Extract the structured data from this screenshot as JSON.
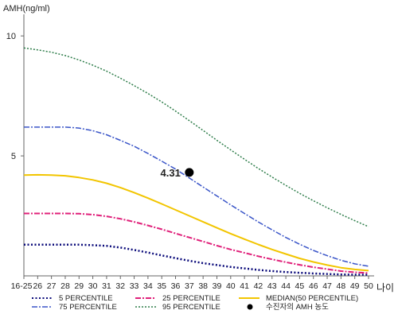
{
  "chart_data": {
    "type": "line",
    "ylabel": "AMH(ng/ml)",
    "xlabel": "나이",
    "ylim": [
      0,
      11
    ],
    "yticks": [
      5,
      10
    ],
    "grid": false,
    "legend_position": "bottom",
    "categories": [
      "16-25",
      "26",
      "27",
      "28",
      "29",
      "30",
      "31",
      "32",
      "33",
      "34",
      "35",
      "36",
      "37",
      "38",
      "39",
      "40",
      "41",
      "42",
      "43",
      "44",
      "45",
      "46",
      "47",
      "48",
      "49",
      "50"
    ],
    "series": [
      {
        "name": "5 PERCENTILE",
        "color": "#0a0a7a",
        "dash": "2,2.5",
        "width": 2.5,
        "values": [
          1.3,
          1.3,
          1.3,
          1.3,
          1.3,
          1.28,
          1.25,
          1.18,
          1.08,
          0.97,
          0.85,
          0.74,
          0.63,
          0.53,
          0.45,
          0.37,
          0.31,
          0.25,
          0.2,
          0.16,
          0.13,
          0.1,
          0.08,
          0.06,
          0.05,
          0.05
        ]
      },
      {
        "name": "25 PERCENTILE",
        "color": "#e0207a",
        "dash": "7,2,2,2",
        "width": 2,
        "values": [
          2.6,
          2.6,
          2.6,
          2.6,
          2.59,
          2.55,
          2.48,
          2.38,
          2.25,
          2.1,
          1.94,
          1.77,
          1.6,
          1.43,
          1.26,
          1.1,
          0.96,
          0.82,
          0.69,
          0.57,
          0.46,
          0.36,
          0.28,
          0.2,
          0.15,
          0.12
        ]
      },
      {
        "name": "MEDIAN(50 PERCENTILE)",
        "color": "#f2c500",
        "dash": "",
        "width": 2,
        "values": [
          4.2,
          4.21,
          4.2,
          4.17,
          4.1,
          4.0,
          3.86,
          3.68,
          3.47,
          3.24,
          3.0,
          2.75,
          2.5,
          2.25,
          2.0,
          1.76,
          1.53,
          1.31,
          1.1,
          0.91,
          0.73,
          0.58,
          0.45,
          0.34,
          0.27,
          0.22
        ]
      },
      {
        "name": "75 PERCENTILE",
        "color": "#3a55c8",
        "dash": "7,2,2,2",
        "width": 1.5,
        "values": [
          6.2,
          6.2,
          6.2,
          6.2,
          6.16,
          6.05,
          5.88,
          5.65,
          5.4,
          5.1,
          4.78,
          4.45,
          4.08,
          3.7,
          3.33,
          2.96,
          2.6,
          2.25,
          1.92,
          1.6,
          1.32,
          1.06,
          0.84,
          0.65,
          0.5,
          0.4
        ]
      },
      {
        "name": "95 PERCENTILE",
        "color": "#2e7d4a",
        "dash": "2,2",
        "width": 1.5,
        "values": [
          9.5,
          9.42,
          9.32,
          9.18,
          9.0,
          8.78,
          8.53,
          8.24,
          7.93,
          7.6,
          7.25,
          6.87,
          6.47,
          6.06,
          5.65,
          5.25,
          4.86,
          4.48,
          4.12,
          3.77,
          3.44,
          3.13,
          2.84,
          2.56,
          2.3,
          2.05
        ]
      }
    ],
    "highlight_point": {
      "label": "4.31",
      "category": "37",
      "value": 4.31,
      "legend": "수진자의 AMH 농도",
      "color": "#000000"
    }
  }
}
